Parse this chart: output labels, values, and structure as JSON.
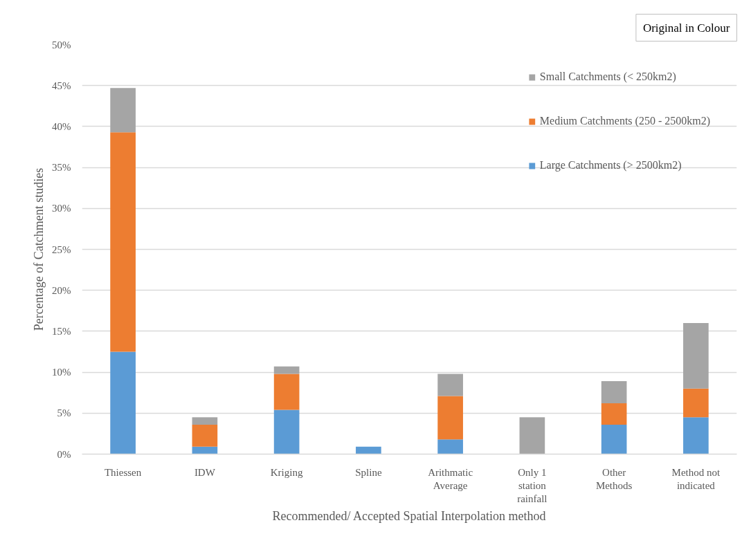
{
  "chart_data": {
    "type": "bar",
    "stacked": true,
    "xlabel": "Recommended/ Accepted Spatial Interpolation method",
    "ylabel": "Percentage of Catchment studies",
    "categories": [
      "Thiessen",
      "IDW",
      "Kriging",
      "Spline",
      "Arithmatic Average",
      "Only 1 station rainfall",
      "Other Methods",
      "Method not indicated"
    ],
    "series": [
      {
        "name": "Large Catchments (> 2500km2)",
        "color": "#5b9bd5",
        "values": [
          12.5,
          0.9,
          5.4,
          0.9,
          1.8,
          null,
          3.6,
          4.5
        ]
      },
      {
        "name": "Medium Catchments (250 - 2500km2)",
        "color": "#ed7d31",
        "values": [
          26.8,
          2.7,
          4.4,
          null,
          5.3,
          null,
          2.6,
          3.5
        ]
      },
      {
        "name": "Small Catchments (< 250km2)",
        "color": "#a5a5a5",
        "values": [
          5.4,
          0.9,
          0.9,
          null,
          2.7,
          4.5,
          2.7,
          8.0
        ]
      }
    ],
    "ylim": [
      0,
      50
    ],
    "yticks": [
      {
        "value": 0,
        "label": "0%"
      },
      {
        "value": 5,
        "label": "5%"
      },
      {
        "value": 10,
        "label": "10%"
      },
      {
        "value": 15,
        "label": "15%"
      },
      {
        "value": 20,
        "label": "20%"
      },
      {
        "value": 25,
        "label": "25%"
      },
      {
        "value": 30,
        "label": "30%"
      },
      {
        "value": 35,
        "label": "35%"
      },
      {
        "value": 40,
        "label": "40%"
      },
      {
        "value": 45,
        "label": "45%"
      },
      {
        "value": 50,
        "label": "50%"
      }
    ],
    "grid": "y",
    "legend": "top right",
    "annotations": [
      "Original in Colour"
    ]
  }
}
